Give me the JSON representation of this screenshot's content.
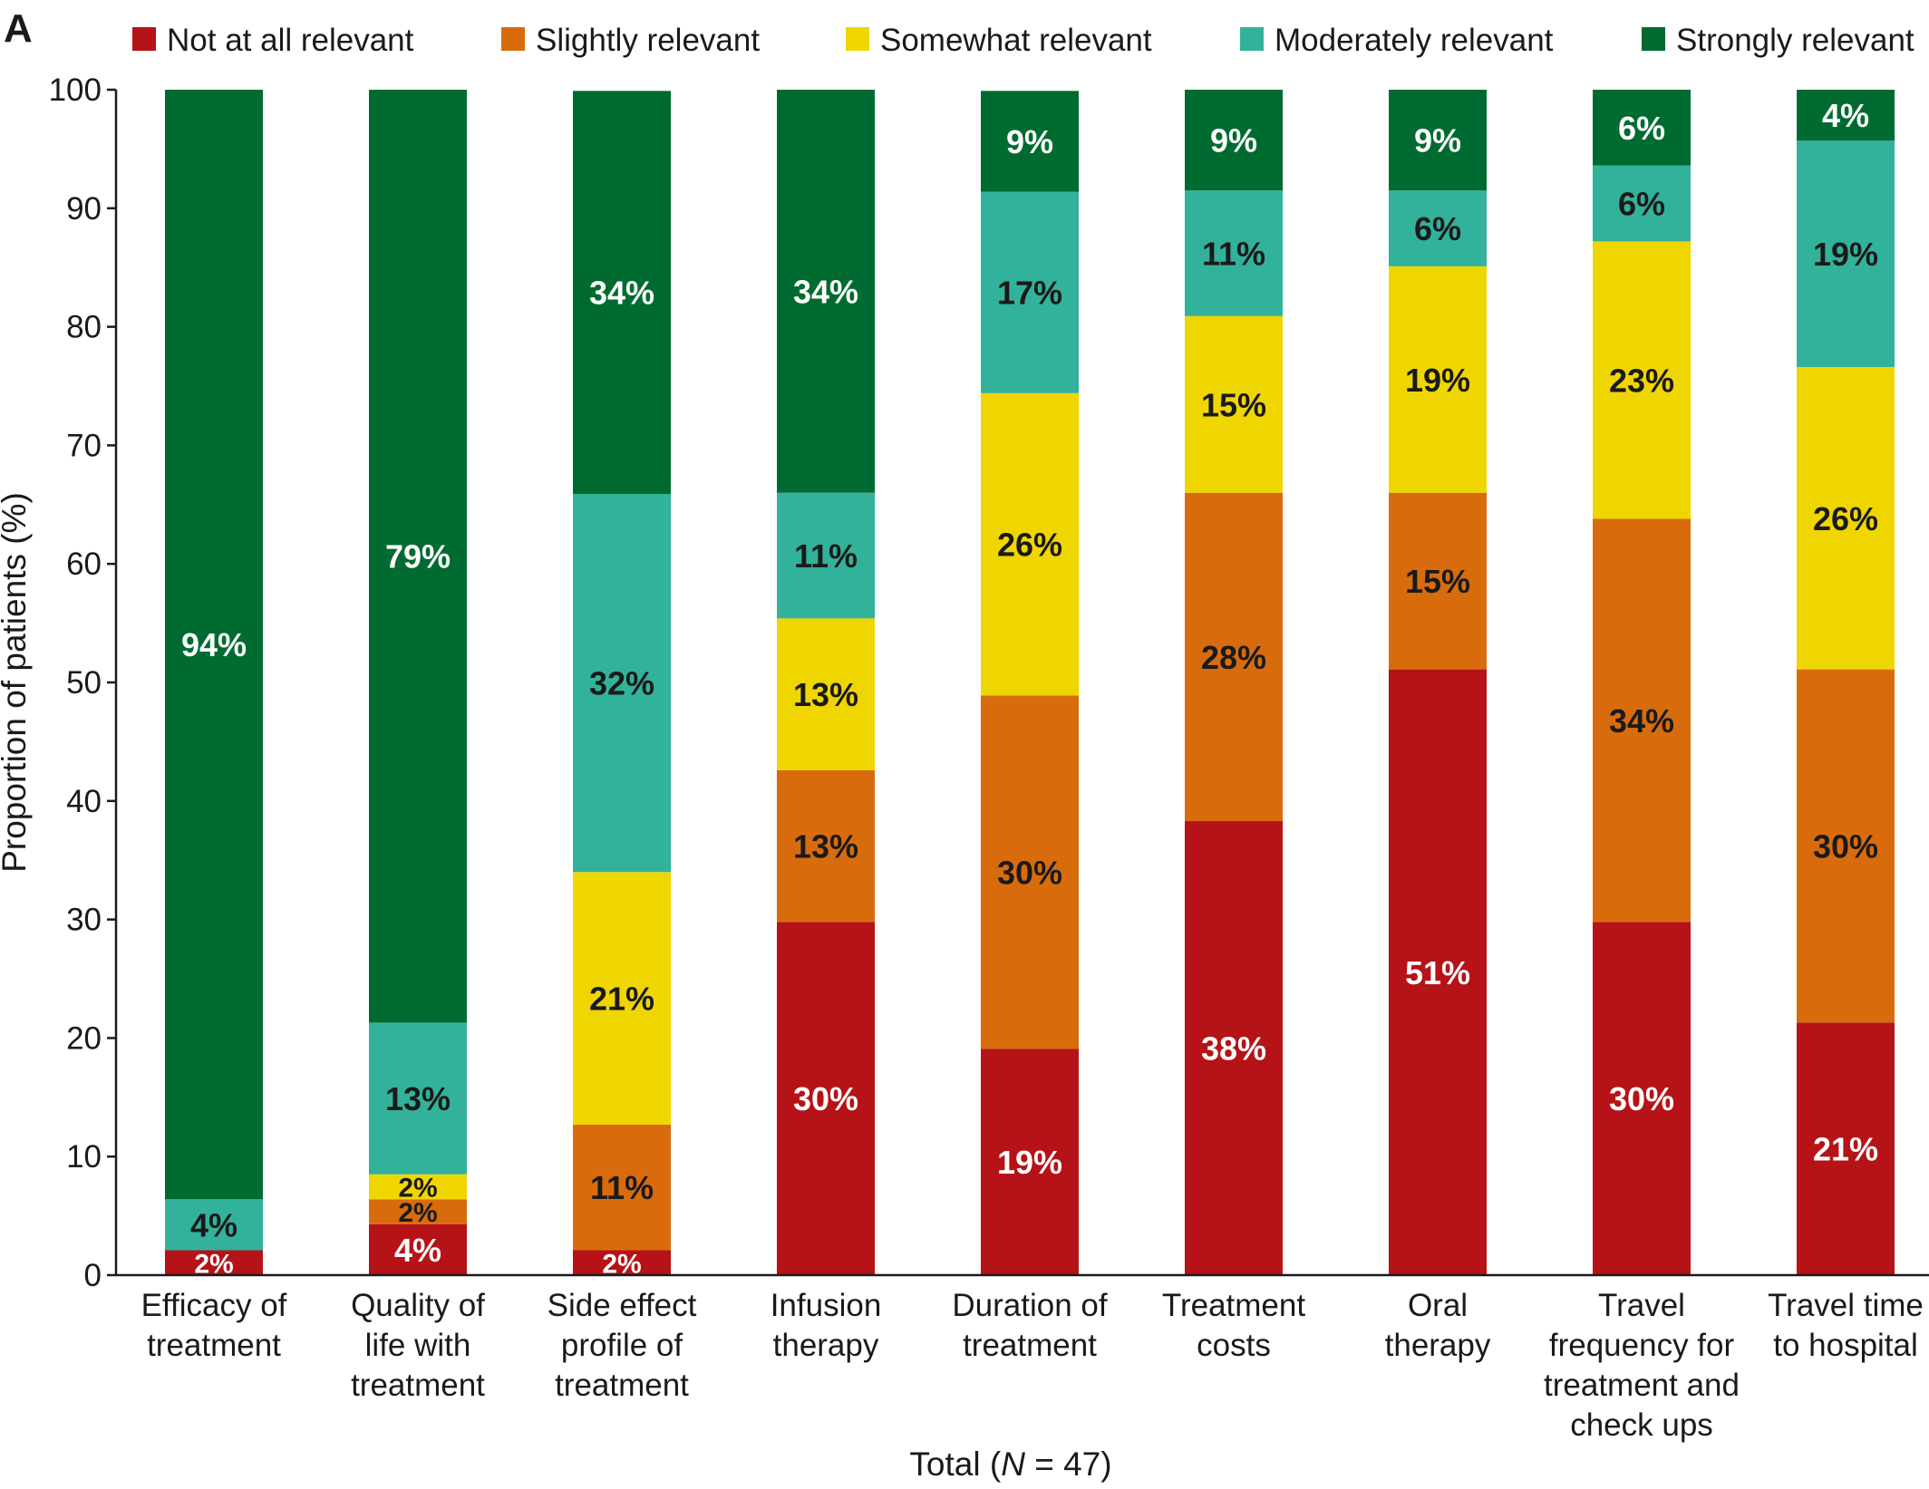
{
  "chart_data": {
    "type": "bar",
    "stacked": true,
    "panel_label": "A",
    "title": "",
    "xlabel_prefix": "Total (",
    "xlabel_italic": "N",
    "xlabel_suffix": " = 47)",
    "ylabel": "Proportion of patients (%)",
    "ylim": [
      0,
      100
    ],
    "yticks": [
      0,
      10,
      20,
      30,
      40,
      50,
      60,
      70,
      80,
      90,
      100
    ],
    "legend_position": "top",
    "categories": [
      [
        "Efficacy of",
        "treatment"
      ],
      [
        "Quality of",
        "life with",
        "treatment"
      ],
      [
        "Side effect",
        "profile of",
        "treatment"
      ],
      [
        "Infusion",
        "therapy"
      ],
      [
        "Duration of",
        "treatment"
      ],
      [
        "Treatment",
        "costs"
      ],
      [
        "Oral",
        "therapy"
      ],
      [
        "Travel",
        "frequency for",
        "treatment and",
        "check ups"
      ],
      [
        "Travel time",
        "to hospital"
      ]
    ],
    "series": [
      {
        "name": "Not at all relevant",
        "color": "#b51317",
        "label_color": "#ffffff",
        "values": [
          2.1,
          4.3,
          2.1,
          29.8,
          19.1,
          38.3,
          51.1,
          29.8,
          21.3
        ],
        "labels": [
          "2%",
          "4%",
          "2%",
          "30%",
          "19%",
          "38%",
          "51%",
          "30%",
          "21%"
        ]
      },
      {
        "name": "Slightly relevant",
        "color": "#d86c0d",
        "label_color": "#1a1a1a",
        "values": [
          0,
          2.1,
          10.6,
          12.8,
          29.8,
          27.7,
          14.9,
          34.0,
          29.8
        ],
        "labels": [
          "",
          "2%",
          "11%",
          "13%",
          "30%",
          "28%",
          "15%",
          "34%",
          "30%"
        ]
      },
      {
        "name": "Somewhat relevant",
        "color": "#f0d600",
        "label_color": "#1a1a1a",
        "values": [
          0,
          2.1,
          21.3,
          12.8,
          25.5,
          14.9,
          19.1,
          23.4,
          25.5
        ],
        "labels": [
          "",
          "2%",
          "21%",
          "13%",
          "26%",
          "15%",
          "19%",
          "23%",
          "26%"
        ]
      },
      {
        "name": "Moderately relevant",
        "color": "#33b29b",
        "label_color": "#1a1a1a",
        "values": [
          4.3,
          12.8,
          31.9,
          10.6,
          17.0,
          10.6,
          6.4,
          6.4,
          19.1
        ],
        "labels": [
          "4%",
          "13%",
          "32%",
          "11%",
          "17%",
          "11%",
          "6%",
          "6%",
          "19%"
        ]
      },
      {
        "name": "Strongly relevant",
        "color": "#006b30",
        "label_color": "#ffffff",
        "values": [
          93.6,
          78.7,
          34.0,
          34.0,
          8.5,
          8.5,
          8.5,
          6.4,
          4.3
        ],
        "labels": [
          "94%",
          "79%",
          "34%",
          "34%",
          "9%",
          "9%",
          "9%",
          "6%",
          "4%"
        ]
      }
    ]
  }
}
